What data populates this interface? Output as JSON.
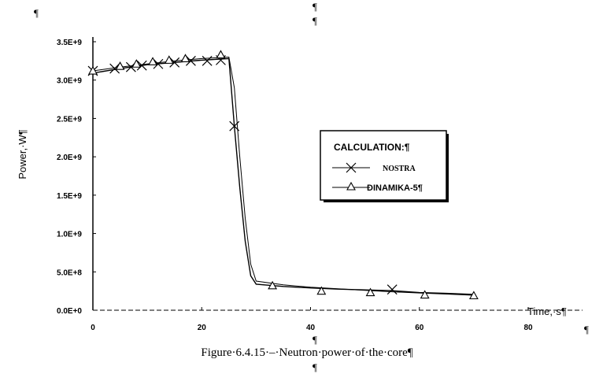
{
  "page": {
    "marks": {
      "top_left": "¶",
      "top_center_1": "¶",
      "top_center_2": "¶",
      "bottom_center_1": "¶",
      "bottom_center_2": "¶",
      "bottom_right": "¶"
    },
    "caption": "Figure·6.4.15·–·Neutron·power·of·the·core¶"
  },
  "chart_data": {
    "type": "line",
    "title": "",
    "xlabel": "Time,·s¶",
    "ylabel": "Power,·W¶",
    "xlim": [
      0,
      80
    ],
    "ylim": [
      0,
      3500000000
    ],
    "x_ticks": [
      "0",
      "20",
      "40",
      "60",
      "80"
    ],
    "y_ticks": [
      "0.0E+0",
      "5.0E+8",
      "1.0E+9",
      "1.5E+9",
      "2.0E+9",
      "2.5E+9",
      "3.0E+9",
      "3.5E+9"
    ],
    "legend": {
      "title": "CALCULATION:¶",
      "position": "right"
    },
    "series": [
      {
        "name": "NOSTRA",
        "marker": "x",
        "line": [
          [
            0,
            3090000000
          ],
          [
            5,
            3150000000
          ],
          [
            10,
            3200000000
          ],
          [
            15,
            3230000000
          ],
          [
            20,
            3260000000
          ],
          [
            25,
            3280000000
          ],
          [
            26,
            2400000000
          ],
          [
            27,
            1600000000
          ],
          [
            28,
            900000000
          ],
          [
            29,
            450000000
          ],
          [
            30,
            340000000
          ],
          [
            35,
            310000000
          ],
          [
            40,
            290000000
          ],
          [
            45,
            275000000
          ],
          [
            50,
            265000000
          ],
          [
            55,
            255000000
          ],
          [
            60,
            230000000
          ],
          [
            65,
            220000000
          ],
          [
            70,
            205000000
          ]
        ],
        "markers": [
          [
            0,
            3120000000
          ],
          [
            4,
            3150000000
          ],
          [
            7,
            3170000000
          ],
          [
            9,
            3190000000
          ],
          [
            12,
            3210000000
          ],
          [
            15,
            3230000000
          ],
          [
            18,
            3250000000
          ],
          [
            21,
            3250000000
          ],
          [
            23.5,
            3260000000
          ],
          [
            26,
            2400000000
          ],
          [
            55,
            270000000
          ]
        ]
      },
      {
        "name": "DINAMIKA-5¶",
        "marker": "triangle",
        "line": [
          [
            0,
            3120000000
          ],
          [
            5,
            3170000000
          ],
          [
            10,
            3210000000
          ],
          [
            15,
            3250000000
          ],
          [
            20,
            3280000000
          ],
          [
            25,
            3300000000
          ],
          [
            26,
            2900000000
          ],
          [
            27,
            2000000000
          ],
          [
            28,
            1200000000
          ],
          [
            29,
            600000000
          ],
          [
            30,
            380000000
          ],
          [
            35,
            330000000
          ],
          [
            40,
            300000000
          ],
          [
            45,
            280000000
          ],
          [
            50,
            260000000
          ],
          [
            55,
            240000000
          ],
          [
            60,
            225000000
          ],
          [
            65,
            210000000
          ],
          [
            70,
            195000000
          ]
        ],
        "markers": [
          [
            0,
            3120000000
          ],
          [
            5,
            3180000000
          ],
          [
            8,
            3210000000
          ],
          [
            11,
            3240000000
          ],
          [
            14,
            3260000000
          ],
          [
            17,
            3280000000
          ],
          [
            23.5,
            3330000000
          ],
          [
            33,
            320000000
          ],
          [
            42,
            250000000
          ],
          [
            51,
            230000000
          ],
          [
            61,
            200000000
          ],
          [
            70,
            190000000
          ]
        ]
      }
    ]
  }
}
